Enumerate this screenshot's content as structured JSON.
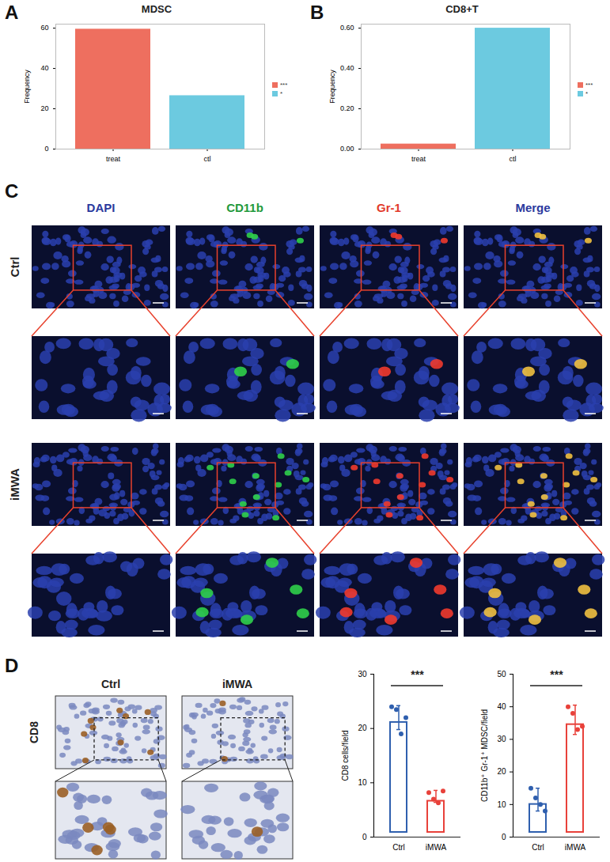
{
  "panel_labels": [
    "A",
    "B",
    "C",
    "D"
  ],
  "chart_data": [
    {
      "type": "bar",
      "title": "MDSC",
      "ylabel": "Frequency",
      "categories": [
        "treat",
        "ctl"
      ],
      "ylim": [
        0,
        62
      ],
      "yticks": [
        0,
        20,
        40,
        60
      ],
      "legend": "right",
      "series": [
        {
          "name": "***",
          "color": "#ee6f5f",
          "values": [
            59.5,
            null
          ]
        },
        {
          "name": "*",
          "color": "#6ccae0",
          "values": [
            null,
            26.5
          ]
        }
      ]
    },
    {
      "type": "bar",
      "title": "CD8+T",
      "ylabel": "Frequency",
      "categories": [
        "treat",
        "ctl"
      ],
      "ylim": [
        0,
        0.62
      ],
      "yticks": [
        {
          "value": 0,
          "label": "0.00"
        },
        {
          "value": 0.2,
          "label": "0.20"
        },
        {
          "value": 0.4,
          "label": "0.40"
        },
        {
          "value": 0.6,
          "label": "0.60"
        }
      ],
      "legend": "right",
      "series": [
        {
          "name": "***",
          "color": "#ee6f5f",
          "values": [
            0.025,
            null
          ]
        },
        {
          "name": "*",
          "color": "#6ccae0",
          "values": [
            null,
            0.6
          ]
        }
      ]
    },
    {
      "type": "bar",
      "ylabel": "CD8 cells/field",
      "categories": [
        "Ctrl",
        "iMWA"
      ],
      "values": [
        22,
        7.5
      ],
      "errors": [
        2.2,
        1.1
      ],
      "points": [
        [
          24,
          23.5,
          19,
          22
        ],
        [
          8.2,
          7,
          6.3,
          8.5
        ]
      ],
      "colors": [
        "#2f5fae",
        "#e8413a"
      ],
      "annotation": "***",
      "ylim": [
        0,
        30
      ],
      "yticks": [
        0,
        10,
        20,
        30
      ]
    },
    {
      "type": "bar",
      "ylabel": "CD11b⁺ Gr-1⁺ MDSC/field",
      "categories": [
        "Ctrl",
        "iMWA"
      ],
      "values": [
        11.5,
        36
      ],
      "errors": [
        3.5,
        4.5
      ],
      "points": [
        [
          15,
          12,
          10,
          8
        ],
        [
          40,
          38,
          33,
          34
        ]
      ],
      "colors": [
        "#2f5fae",
        "#e8413a"
      ],
      "annotation": "***",
      "ylim": [
        0,
        50
      ],
      "yticks": [
        0,
        10,
        20,
        30,
        40,
        50
      ]
    }
  ],
  "micrograph": {
    "columns": [
      "DAPI",
      "CD11b",
      "Gr-1",
      "Merge"
    ],
    "colors": [
      "#2b3a9e",
      "#1f9a3c",
      "#e23a2a",
      "#2b3a9e"
    ],
    "rows": [
      "Ctrl",
      "iMWA"
    ]
  },
  "ihc": {
    "marker": "CD8",
    "columns": [
      "Ctrl",
      "iMWA"
    ]
  }
}
